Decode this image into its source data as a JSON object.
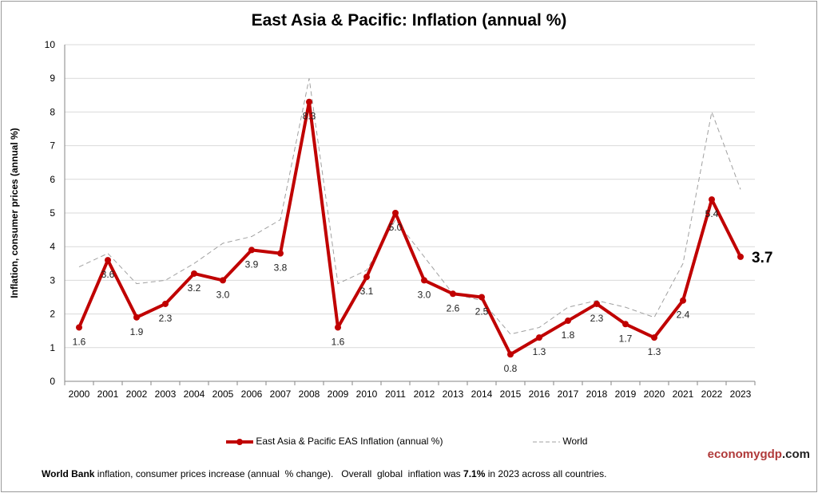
{
  "chart_data": {
    "type": "line",
    "title": "East Asia & Pacific: Inflation (annual %)",
    "ylabel": "Inflation, consumer prices (annual %)",
    "xlabel": "",
    "ylim": [
      0,
      10
    ],
    "yticks": [
      0,
      1,
      2,
      3,
      4,
      5,
      6,
      7,
      8,
      9,
      10
    ],
    "grid": true,
    "legend_position": "bottom",
    "categories": [
      "2000",
      "2001",
      "2002",
      "2003",
      "2004",
      "2005",
      "2006",
      "2007",
      "2008",
      "2009",
      "2010",
      "2011",
      "2012",
      "2013",
      "2014",
      "2015",
      "2016",
      "2017",
      "2018",
      "2019",
      "2020",
      "2021",
      "2022",
      "2023"
    ],
    "series": [
      {
        "name": "East Asia & Pacific EAS Inflation (annual %)",
        "color": "#c00000",
        "style": "solid-markers",
        "values": [
          1.6,
          3.6,
          1.9,
          2.3,
          3.2,
          3.0,
          3.9,
          3.8,
          8.3,
          1.6,
          3.1,
          5.0,
          3.0,
          2.6,
          2.5,
          0.8,
          1.3,
          1.8,
          2.3,
          1.7,
          1.3,
          2.4,
          5.4,
          3.7
        ],
        "data_labels": [
          "1.6",
          "3.6",
          "1.9",
          "2.3",
          "3.2",
          "3.0",
          "3.9",
          "3.8",
          "8.3",
          "1.6",
          "3.1",
          "5.0",
          "3.0",
          "2.6",
          "2.5",
          "0.8",
          "1.3",
          "1.8",
          "2.3",
          "1.7",
          "1.3",
          "2.4",
          "5.4",
          "3.7"
        ]
      },
      {
        "name": "World",
        "color": "#a0a0a0",
        "style": "dashed",
        "values": [
          3.4,
          3.8,
          2.9,
          3.0,
          3.5,
          4.1,
          4.3,
          4.8,
          9.0,
          2.9,
          3.3,
          4.8,
          3.7,
          2.6,
          2.4,
          1.4,
          1.6,
          2.2,
          2.4,
          2.2,
          1.9,
          3.5,
          8.0,
          5.7
        ]
      }
    ]
  },
  "brand": {
    "part1": "economy",
    "part2": "gdp",
    "part3": ".com"
  },
  "footer": {
    "bold1": "World Bank",
    "text1": " inflation, consumer prices increase (annual  % change).   Overall  global  inflation was ",
    "bold2": "7.1%",
    "text2": " in 2023 across all countries."
  }
}
